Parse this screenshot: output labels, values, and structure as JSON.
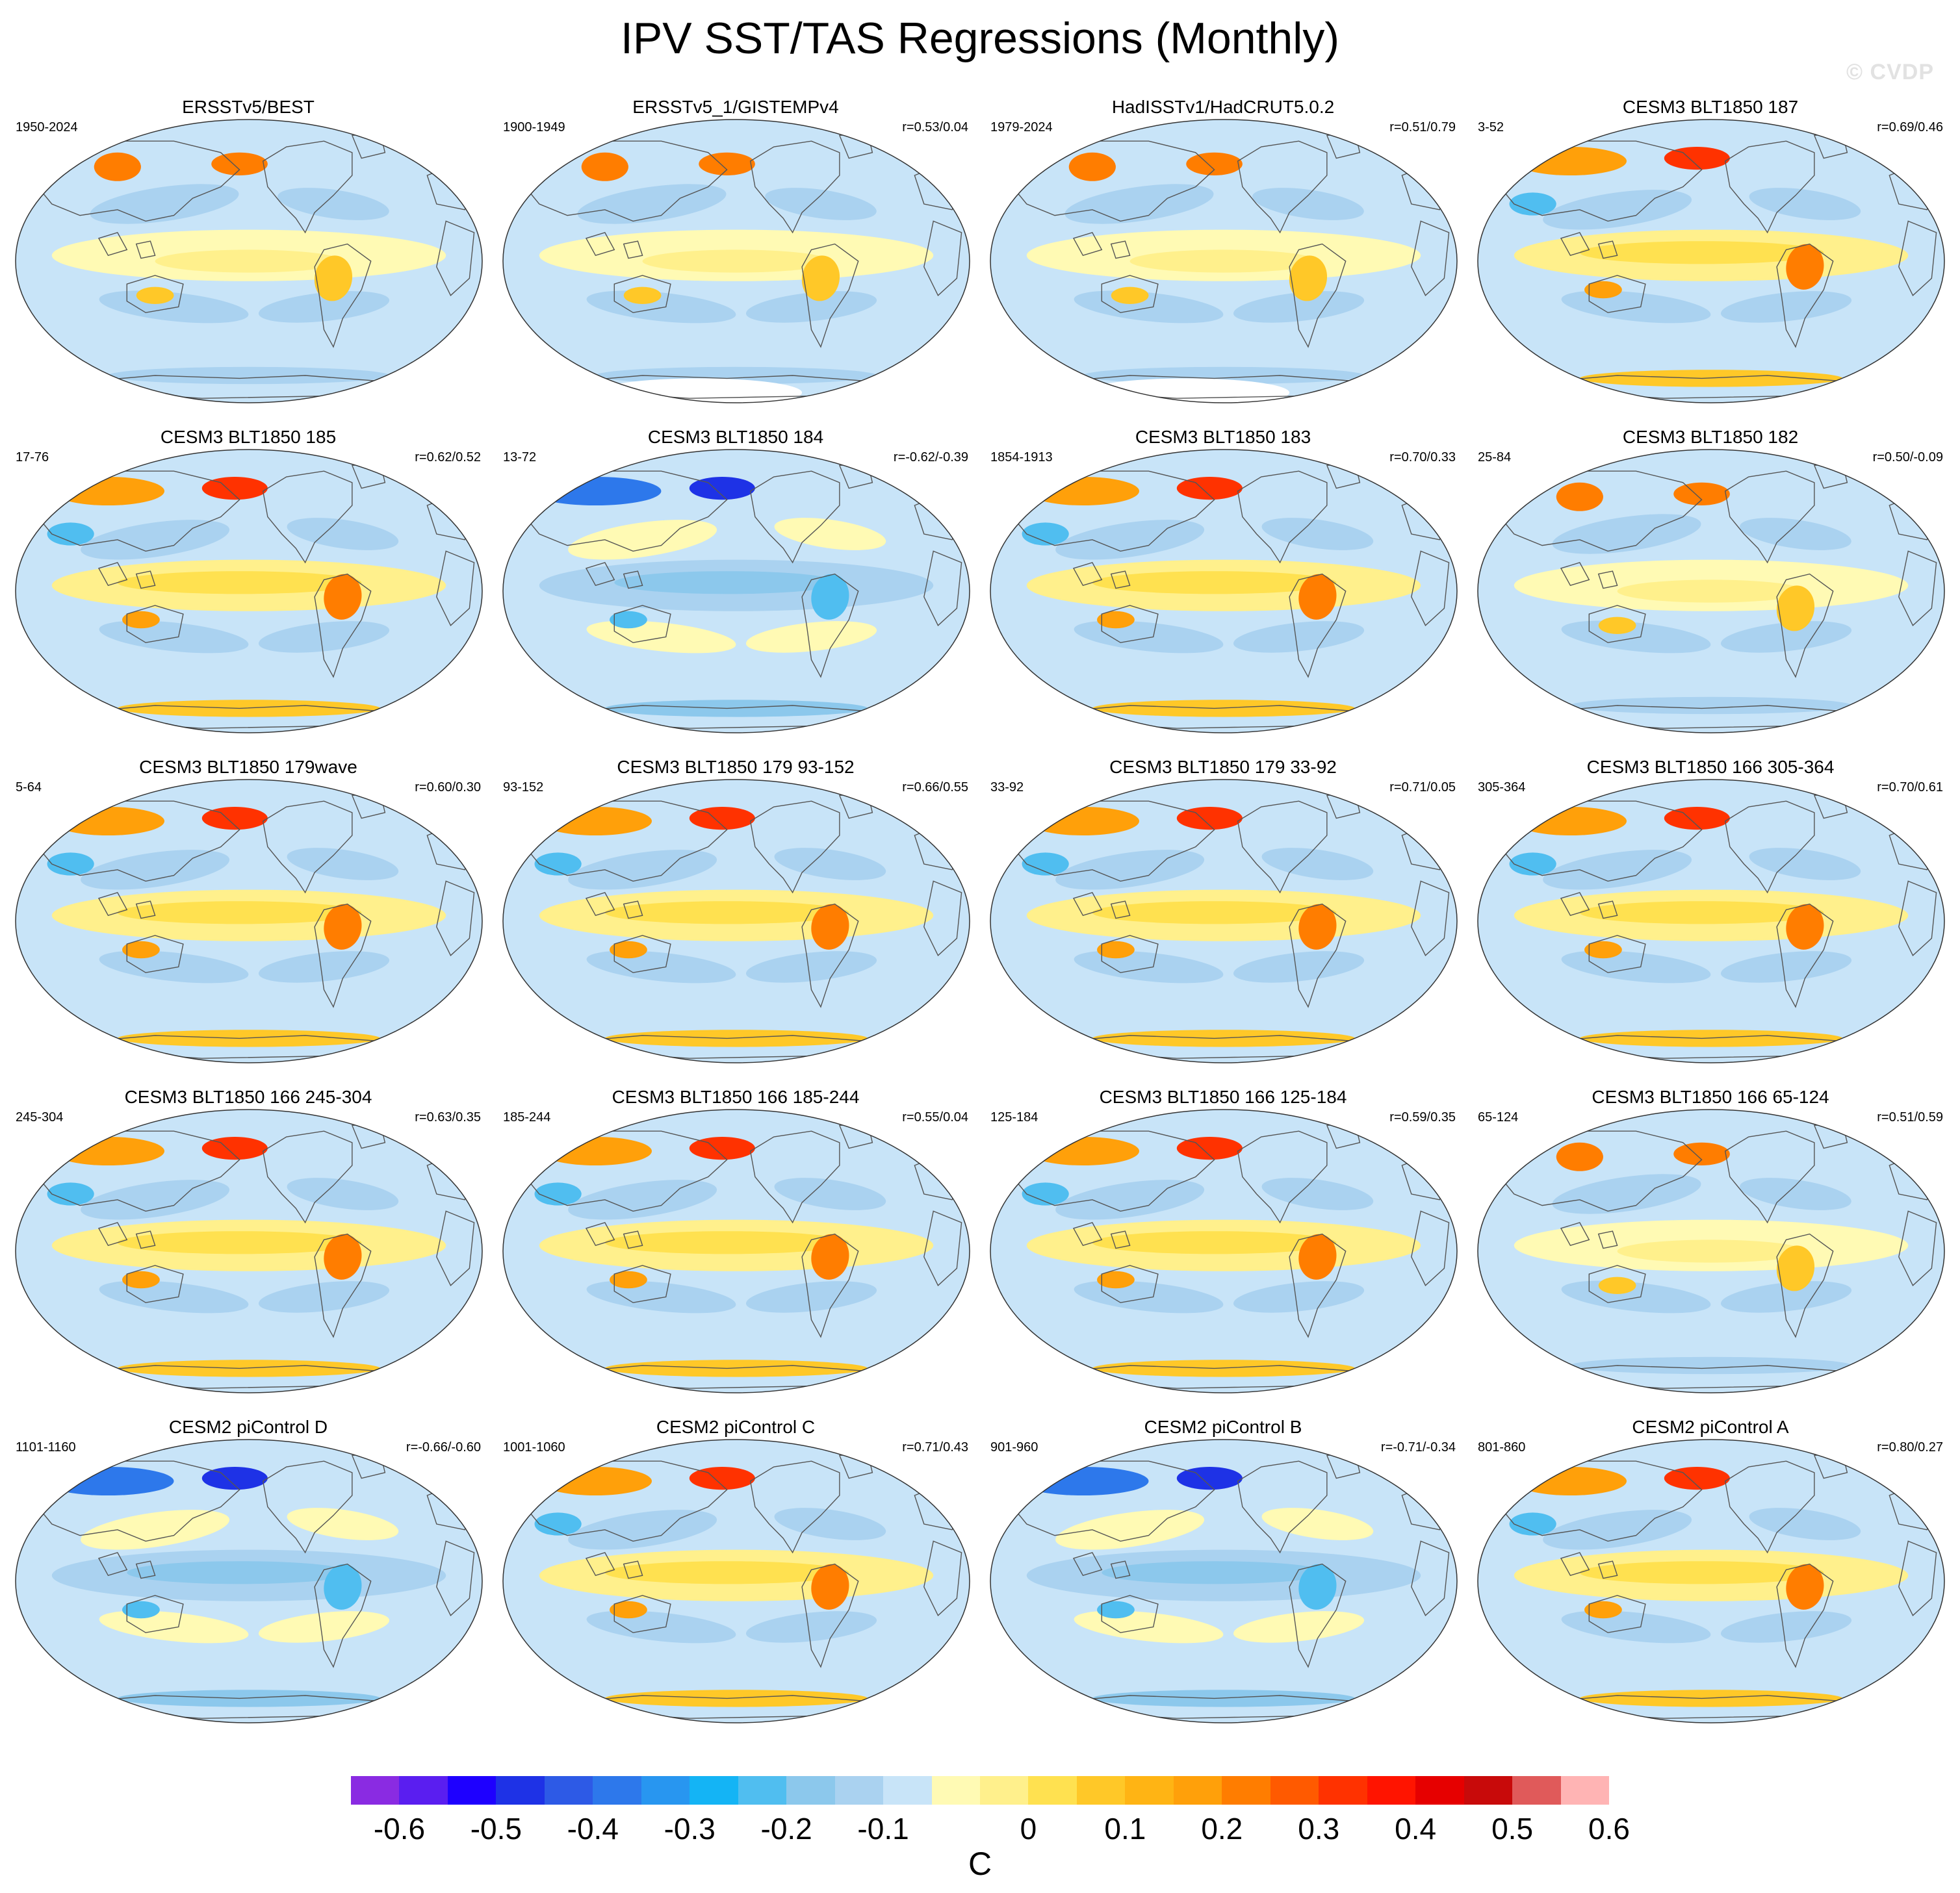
{
  "figure": {
    "title": "IPV SST/TAS Regressions (Monthly)",
    "watermark": "© CVDP",
    "units": "C"
  },
  "panels": [
    {
      "title": "ERSSTv5/BEST",
      "years": "1950-2024",
      "corr": "",
      "pattern": "A",
      "missing": false
    },
    {
      "title": "ERSSTv5_1/GISTEMPv4",
      "years": "1900-1949",
      "corr": "r=0.53/0.04",
      "pattern": "A",
      "missing": true
    },
    {
      "title": "HadISSTv1/HadCRUT5.0.2",
      "years": "1979-2024",
      "corr": "r=0.51/0.79",
      "pattern": "A",
      "missing": true
    },
    {
      "title": "CESM3 BLT1850 187",
      "years": "3-52",
      "corr": "r=0.69/0.46",
      "pattern": "B",
      "missing": false
    },
    {
      "title": "CESM3 BLT1850 185",
      "years": "17-76",
      "corr": "r=0.62/0.52",
      "pattern": "B",
      "missing": false
    },
    {
      "title": "CESM3 BLT1850 184",
      "years": "13-72",
      "corr": "r=-0.62/-0.39",
      "pattern": "C",
      "missing": false
    },
    {
      "title": "CESM3 BLT1850 183",
      "years": "1854-1913",
      "corr": "r=0.70/0.33",
      "pattern": "B",
      "missing": false
    },
    {
      "title": "CESM3 BLT1850 182",
      "years": "25-84",
      "corr": "r=0.50/-0.09",
      "pattern": "A",
      "missing": false
    },
    {
      "title": "CESM3 BLT1850 179wave",
      "years": "5-64",
      "corr": "r=0.60/0.30",
      "pattern": "B",
      "missing": false
    },
    {
      "title": "CESM3 BLT1850 179 93-152",
      "years": "93-152",
      "corr": "r=0.66/0.55",
      "pattern": "B",
      "missing": false
    },
    {
      "title": "CESM3 BLT1850 179 33-92",
      "years": "33-92",
      "corr": "r=0.71/0.05",
      "pattern": "B",
      "missing": false
    },
    {
      "title": "CESM3 BLT1850 166 305-364",
      "years": "305-364",
      "corr": "r=0.70/0.61",
      "pattern": "B",
      "missing": false
    },
    {
      "title": "CESM3 BLT1850 166 245-304",
      "years": "245-304",
      "corr": "r=0.63/0.35",
      "pattern": "B",
      "missing": false
    },
    {
      "title": "CESM3 BLT1850 166 185-244",
      "years": "185-244",
      "corr": "r=0.55/0.04",
      "pattern": "B",
      "missing": false
    },
    {
      "title": "CESM3 BLT1850 166 125-184",
      "years": "125-184",
      "corr": "r=0.59/0.35",
      "pattern": "B",
      "missing": false
    },
    {
      "title": "CESM3 BLT1850 166 65-124",
      "years": "65-124",
      "corr": "r=0.51/0.59",
      "pattern": "A",
      "missing": false
    },
    {
      "title": "CESM2 piControl D",
      "years": "1101-1160",
      "corr": "r=-0.66/-0.60",
      "pattern": "C",
      "missing": false
    },
    {
      "title": "CESM2 piControl C",
      "years": "1001-1060",
      "corr": "r=0.71/0.43",
      "pattern": "B",
      "missing": false
    },
    {
      "title": "CESM2 piControl B",
      "years": "901-960",
      "corr": "r=-0.71/-0.34",
      "pattern": "C",
      "missing": false
    },
    {
      "title": "CESM2 piControl A",
      "years": "801-860",
      "corr": "r=0.80/0.27",
      "pattern": "B",
      "missing": false
    }
  ],
  "colorbar": {
    "colors": [
      "#8a2be2",
      "#5a1ef0",
      "#1e00ff",
      "#1e32e6",
      "#2d5ae6",
      "#2d78eb",
      "#2896f0",
      "#14b4f5",
      "#50bef0",
      "#8cc8ec",
      "#aad2f0",
      "#c8e4f8",
      "#fffab4",
      "#fff08c",
      "#ffe150",
      "#ffc828",
      "#ffb414",
      "#ffa00a",
      "#ff7d00",
      "#ff5a00",
      "#ff3200",
      "#ff1400",
      "#e60000",
      "#c80a0a",
      "#e05a5a",
      "#ffb4b4"
    ],
    "ticks": [
      "-0.6",
      "-0.5",
      "-0.4",
      "-0.3",
      "-0.2",
      "-0.1",
      "0",
      "0.1",
      "0.2",
      "0.3",
      "0.4",
      "0.5",
      "0.6"
    ]
  }
}
